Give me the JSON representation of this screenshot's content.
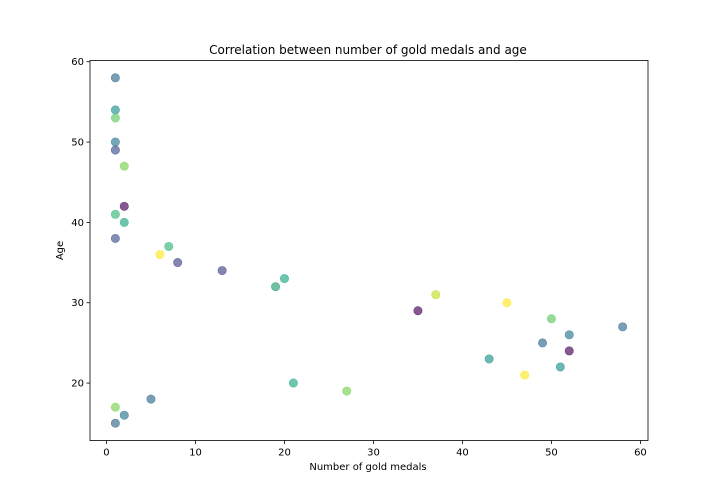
{
  "chart_data": {
    "type": "scatter",
    "title": "Correlation between number of gold medals and age",
    "xlabel": "Number of gold medals",
    "ylabel": "Age",
    "xlim": [
      -1.85,
      60.85
    ],
    "ylim": [
      12.85,
      60.15
    ],
    "xticks": [
      0,
      10,
      20,
      30,
      40,
      50,
      60
    ],
    "yticks": [
      20,
      30,
      40,
      50,
      60
    ],
    "grid": false,
    "marker_opacity": 0.65,
    "points": [
      {
        "x": 1,
        "y": 58,
        "color": "#31688e"
      },
      {
        "x": 1,
        "y": 54,
        "color": "#21918c"
      },
      {
        "x": 1,
        "y": 53,
        "color": "#5ec962"
      },
      {
        "x": 1,
        "y": 50,
        "color": "#2a788e"
      },
      {
        "x": 1,
        "y": 49,
        "color": "#3b528b"
      },
      {
        "x": 2,
        "y": 47,
        "color": "#7ad151"
      },
      {
        "x": 2,
        "y": 42,
        "color": "#440154"
      },
      {
        "x": 1,
        "y": 41,
        "color": "#35b779"
      },
      {
        "x": 2,
        "y": 40,
        "color": "#22a884"
      },
      {
        "x": 1,
        "y": 38,
        "color": "#3b528b"
      },
      {
        "x": 7,
        "y": 37,
        "color": "#35b779"
      },
      {
        "x": 6,
        "y": 36,
        "color": "#fde725"
      },
      {
        "x": 8,
        "y": 35,
        "color": "#414487"
      },
      {
        "x": 13,
        "y": 34,
        "color": "#414487"
      },
      {
        "x": 20,
        "y": 33,
        "color": "#22a884"
      },
      {
        "x": 19,
        "y": 32,
        "color": "#2a9d73"
      },
      {
        "x": 37,
        "y": 31,
        "color": "#bddf26"
      },
      {
        "x": 45,
        "y": 30,
        "color": "#fde725"
      },
      {
        "x": 35,
        "y": 29,
        "color": "#440154"
      },
      {
        "x": 50,
        "y": 28,
        "color": "#5ec962"
      },
      {
        "x": 58,
        "y": 27,
        "color": "#31688e"
      },
      {
        "x": 52,
        "y": 26,
        "color": "#2a788e"
      },
      {
        "x": 49,
        "y": 25,
        "color": "#31688e"
      },
      {
        "x": 52,
        "y": 24,
        "color": "#440154"
      },
      {
        "x": 43,
        "y": 23,
        "color": "#21918c"
      },
      {
        "x": 51,
        "y": 22,
        "color": "#21918c"
      },
      {
        "x": 47,
        "y": 21,
        "color": "#fde725"
      },
      {
        "x": 21,
        "y": 20,
        "color": "#22a884"
      },
      {
        "x": 27,
        "y": 19,
        "color": "#7ad151"
      },
      {
        "x": 5,
        "y": 18,
        "color": "#31688e"
      },
      {
        "x": 1,
        "y": 17,
        "color": "#7ad151"
      },
      {
        "x": 2,
        "y": 16,
        "color": "#2a788e"
      },
      {
        "x": 1,
        "y": 15,
        "color": "#31688e"
      }
    ]
  }
}
